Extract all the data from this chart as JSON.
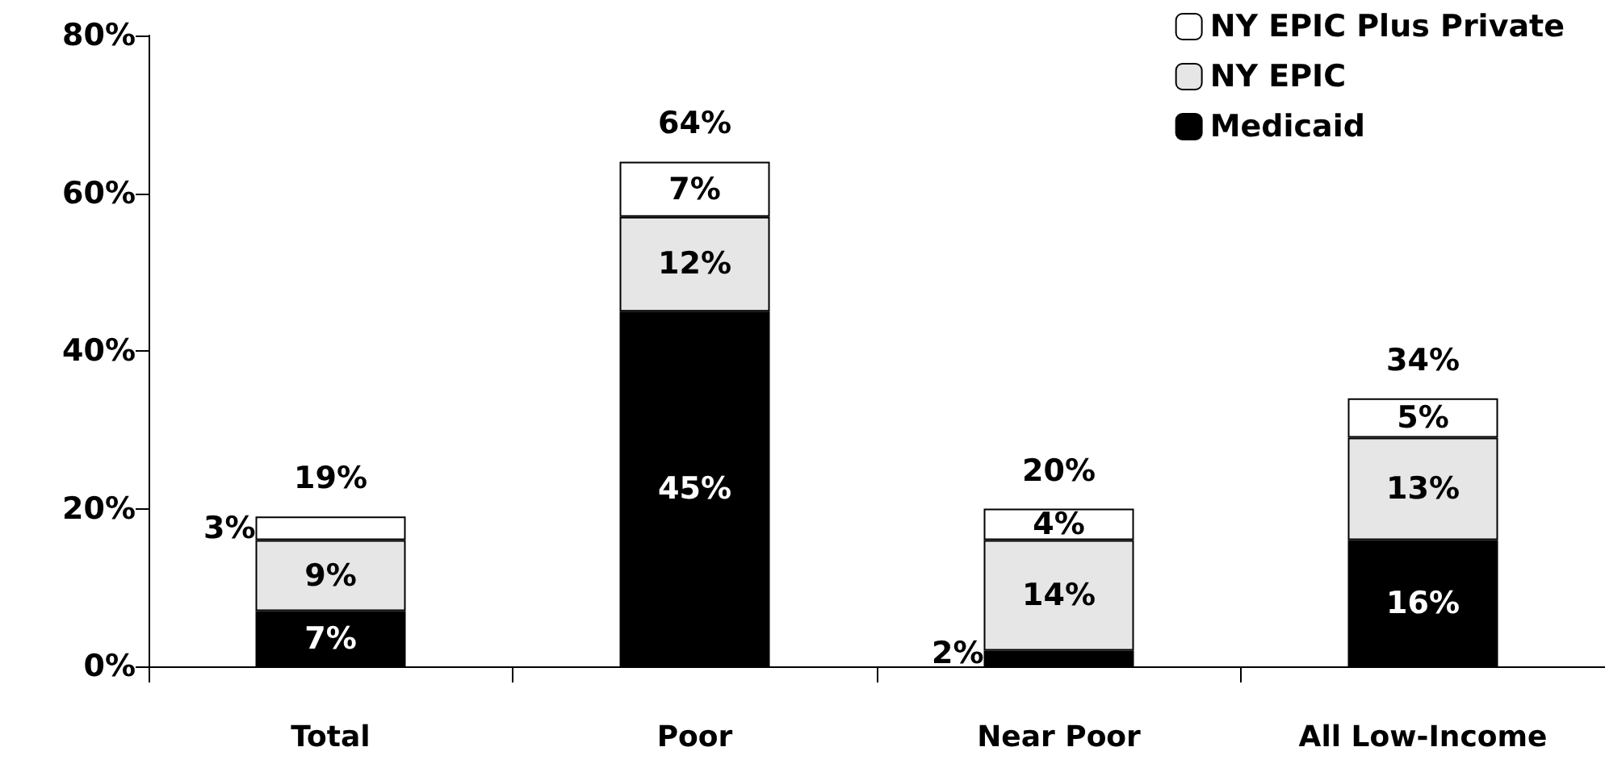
{
  "chart_data": {
    "type": "bar",
    "stacked": true,
    "categories": [
      "Total",
      "Poor",
      "Near Poor",
      "All Low-Income"
    ],
    "series": [
      {
        "name": "Medicaid",
        "color": "#000000",
        "values": [
          7,
          45,
          2,
          16
        ],
        "value_labels": [
          "7%",
          "45%",
          "2%",
          "16%"
        ]
      },
      {
        "name": "NY EPIC",
        "color": "#e6e6e6",
        "values": [
          9,
          12,
          14,
          13
        ],
        "value_labels": [
          "9%",
          "12%",
          "14%",
          "13%"
        ]
      },
      {
        "name": "NY EPIC Plus Private",
        "color": "#ffffff",
        "values": [
          3,
          7,
          4,
          5
        ],
        "value_labels": [
          "3%",
          "7%",
          "4%",
          "5%"
        ]
      }
    ],
    "totals": [
      "19%",
      "64%",
      "20%",
      "34%"
    ],
    "ylim": [
      0,
      80
    ],
    "yticks": [
      {
        "value": 0,
        "label": "0%"
      },
      {
        "value": 20,
        "label": "20%"
      },
      {
        "value": 40,
        "label": "40%"
      },
      {
        "value": 60,
        "label": "60%"
      },
      {
        "value": 80,
        "label": "80%"
      }
    ],
    "grid": false,
    "legend": "top right"
  }
}
